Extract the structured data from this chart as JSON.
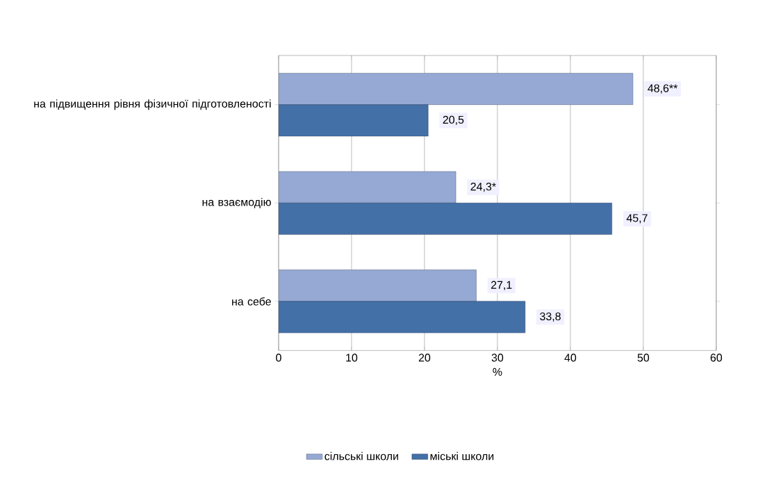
{
  "chart_data": {
    "type": "bar",
    "orientation": "horizontal",
    "categories": [
      "на підвищення рівня фізичної підготовленості",
      "на взаємодію",
      "на себе"
    ],
    "series": [
      {
        "name": "сільські школи",
        "color": "#95a9d4",
        "values": [
          48.6,
          24.3,
          27.1
        ],
        "value_labels": [
          "48,6**",
          "24,3*",
          "27,1"
        ]
      },
      {
        "name": "міські школи",
        "color": "#4470a8",
        "values": [
          20.5,
          45.7,
          33.8
        ],
        "value_labels": [
          "20,5",
          "45,7",
          "33,8"
        ]
      }
    ],
    "xlabel": "%",
    "xlim": [
      0,
      60
    ],
    "xticks": [
      0,
      10,
      20,
      30,
      40,
      50,
      60
    ],
    "grid": "x",
    "legend": "bottom"
  }
}
